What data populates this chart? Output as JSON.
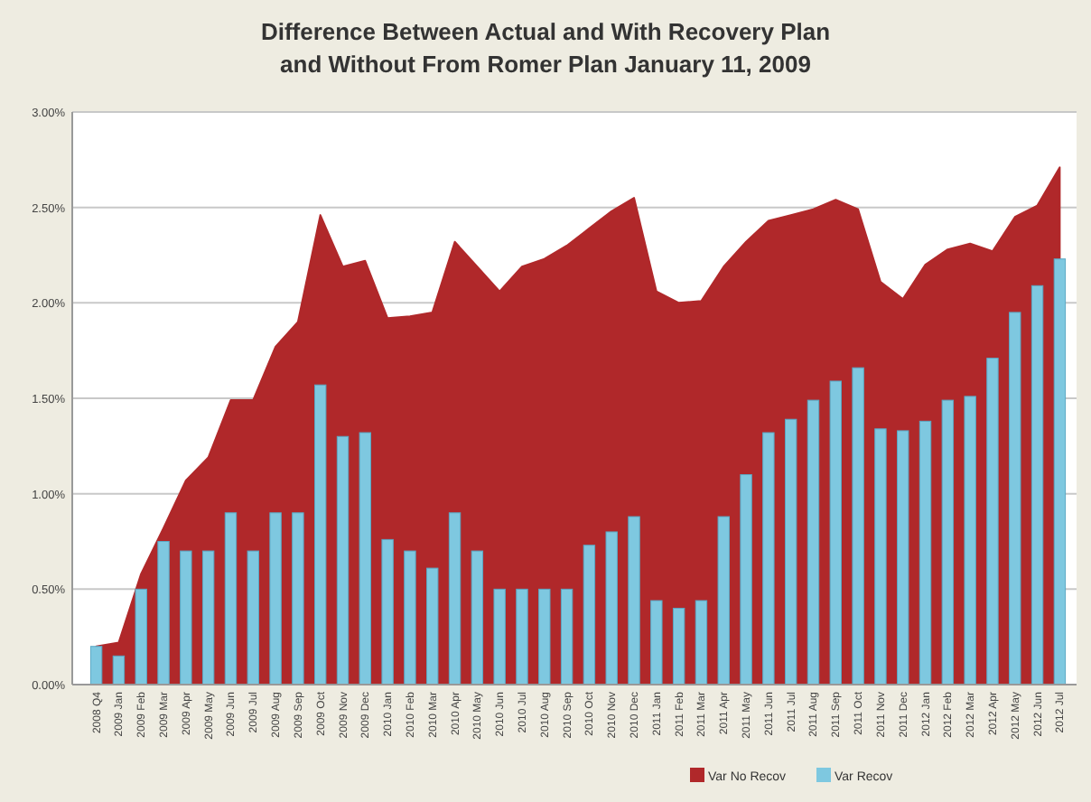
{
  "chart_data": {
    "type": "bar",
    "title": "Difference Between Actual and With Recovery Plan and Without From Romer Plan January 11, 2009",
    "categories": [
      "2008 Q4",
      "2009 Jan",
      "2009 Feb",
      "2009 Mar",
      "2009 Apr",
      "2009 May",
      "2009 Jun",
      "2009 Jul",
      "2009 Aug",
      "2009 Sep",
      "2009 Oct",
      "2009 Nov",
      "2009 Dec",
      "2010 Jan",
      "2010 Feb",
      "2010 Mar",
      "2010 Apr",
      "2010 May",
      "2010 Jun",
      "2010 Jul",
      "2010 Aug",
      "2010 Sep",
      "2010 Oct",
      "2010 Nov",
      "2010 Dec",
      "2011 Jan",
      "2011 Feb",
      "2011 Mar",
      "2011 Apr",
      "2011 May",
      "2011 Jun",
      "2011 Jul",
      "2011 Aug",
      "2011 Sep",
      "2011 Oct",
      "2011 Nov",
      "2011 Dec",
      "2012 Jan",
      "2012 Feb",
      "2012 Mar",
      "2012 Apr",
      "2012 May",
      "2012 Jun",
      "2012 Jul"
    ],
    "series": [
      {
        "name": "Var No Recov",
        "type": "area",
        "color": "#b0282a",
        "values": [
          0.2,
          0.22,
          0.58,
          0.82,
          1.07,
          1.19,
          1.49,
          1.49,
          1.77,
          1.9,
          2.46,
          2.19,
          2.22,
          1.92,
          1.93,
          1.95,
          2.32,
          2.19,
          2.06,
          2.19,
          2.23,
          2.3,
          2.39,
          2.48,
          2.55,
          2.06,
          2.0,
          2.01,
          2.19,
          2.32,
          2.43,
          2.46,
          2.49,
          2.54,
          2.49,
          2.11,
          2.02,
          2.2,
          2.28,
          2.31,
          2.27,
          2.45,
          2.51,
          2.71
        ]
      },
      {
        "name": "Var Recov",
        "color": "#7ec8e0",
        "values": [
          0.2,
          0.15,
          0.5,
          0.75,
          0.7,
          0.7,
          0.9,
          0.7,
          0.9,
          0.9,
          1.57,
          1.3,
          1.32,
          0.76,
          0.7,
          0.61,
          0.9,
          0.7,
          0.5,
          0.5,
          0.5,
          0.5,
          0.73,
          0.8,
          0.88,
          0.44,
          0.4,
          0.44,
          0.88,
          1.1,
          1.32,
          1.39,
          1.49,
          1.59,
          1.66,
          1.34,
          1.33,
          1.38,
          1.49,
          1.51,
          1.71,
          1.95,
          2.09,
          2.23
        ]
      }
    ],
    "ylim": [
      0,
      3
    ],
    "yticks": [
      {
        "value": 0,
        "label": "0.00%"
      },
      {
        "value": 0.5,
        "label": "0.50%"
      },
      {
        "value": 1,
        "label": "1.00%"
      },
      {
        "value": 1.5,
        "label": "1.50%"
      },
      {
        "value": 2,
        "label": "2.00%"
      },
      {
        "value": 2.5,
        "label": "2.50%"
      },
      {
        "value": 3,
        "label": "3.00%"
      }
    ],
    "grid": "y",
    "legend": "bottom"
  }
}
